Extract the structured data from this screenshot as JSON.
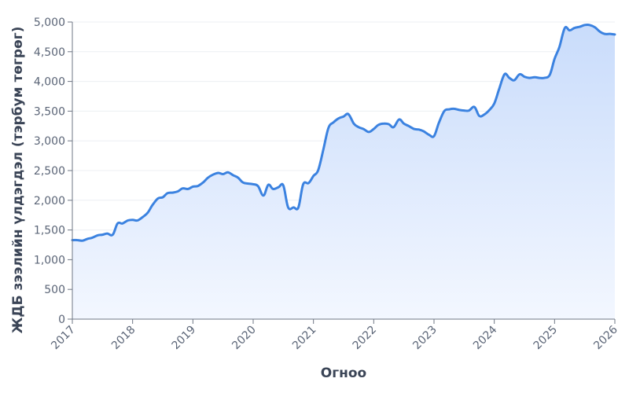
{
  "chart_data": {
    "type": "area",
    "xlabel": "Огноо",
    "ylabel": "ЖДБ зээлийн үлдэгдэл (тэрбум төгрөг)",
    "xlim": [
      2017,
      2026
    ],
    "ylim": [
      0,
      5000
    ],
    "x_ticks": [
      "2017",
      "2018",
      "2019",
      "2020",
      "2021",
      "2022",
      "2023",
      "2024",
      "2025",
      "2026"
    ],
    "y_ticks": [
      "0",
      "500",
      "1,000",
      "1,500",
      "2,000",
      "2,500",
      "3,000",
      "3,500",
      "4,000",
      "4,500",
      "5,000"
    ],
    "grid": true,
    "line_color": "#3b82e0",
    "fill_color_top": "#c9dcfb",
    "fill_color_bottom": "#f3f7ff",
    "series": [
      {
        "x": [
          2017.0,
          2017.08,
          2017.17,
          2017.25,
          2017.33,
          2017.42,
          2017.5,
          2017.58,
          2017.67,
          2017.75,
          2017.83,
          2017.92,
          2018.0,
          2018.08,
          2018.17,
          2018.25,
          2018.33,
          2018.42,
          2018.5,
          2018.58,
          2018.67,
          2018.75,
          2018.83,
          2018.92,
          2019.0,
          2019.08,
          2019.17,
          2019.25,
          2019.33,
          2019.42,
          2019.5,
          2019.58,
          2019.67,
          2019.75,
          2019.83,
          2019.92,
          2020.0,
          2020.08,
          2020.17,
          2020.25,
          2020.33,
          2020.42,
          2020.5,
          2020.58,
          2020.67,
          2020.75,
          2020.83,
          2020.92,
          2021.0,
          2021.08,
          2021.17,
          2021.25,
          2021.33,
          2021.42,
          2021.5,
          2021.58,
          2021.67,
          2021.75,
          2021.83,
          2021.92,
          2022.0,
          2022.08,
          2022.17,
          2022.25,
          2022.33,
          2022.42,
          2022.5,
          2022.58,
          2022.67,
          2022.75,
          2022.83,
          2022.92,
          2023.0,
          2023.08,
          2023.17,
          2023.25,
          2023.33,
          2023.42,
          2023.5,
          2023.58,
          2023.67,
          2023.75,
          2023.83,
          2023.92,
          2024.0,
          2024.08,
          2024.17,
          2024.25,
          2024.33,
          2024.42,
          2024.5,
          2024.58,
          2024.67,
          2024.75,
          2024.83,
          2024.92,
          2025.0,
          2025.08,
          2025.17,
          2025.25,
          2025.33,
          2025.42,
          2025.5,
          2025.58,
          2025.67,
          2025.75,
          2025.83,
          2025.92,
          2026.0
        ],
        "values": [
          1330,
          1330,
          1320,
          1350,
          1370,
          1410,
          1420,
          1440,
          1420,
          1610,
          1610,
          1660,
          1670,
          1660,
          1720,
          1790,
          1920,
          2030,
          2050,
          2120,
          2130,
          2150,
          2200,
          2190,
          2230,
          2240,
          2300,
          2380,
          2430,
          2460,
          2440,
          2470,
          2420,
          2380,
          2300,
          2280,
          2270,
          2240,
          2080,
          2260,
          2190,
          2220,
          2250,
          1880,
          1880,
          1880,
          2270,
          2290,
          2410,
          2510,
          2880,
          3220,
          3310,
          3380,
          3410,
          3450,
          3290,
          3230,
          3200,
          3150,
          3200,
          3270,
          3290,
          3280,
          3230,
          3360,
          3290,
          3250,
          3200,
          3190,
          3160,
          3100,
          3080,
          3300,
          3500,
          3530,
          3540,
          3520,
          3510,
          3510,
          3570,
          3420,
          3440,
          3520,
          3630,
          3870,
          4120,
          4060,
          4020,
          4120,
          4080,
          4060,
          4070,
          4060,
          4060,
          4110,
          4380,
          4580,
          4900,
          4860,
          4900,
          4920,
          4950,
          4950,
          4910,
          4840,
          4800,
          4800,
          4790
        ]
      }
    ]
  }
}
